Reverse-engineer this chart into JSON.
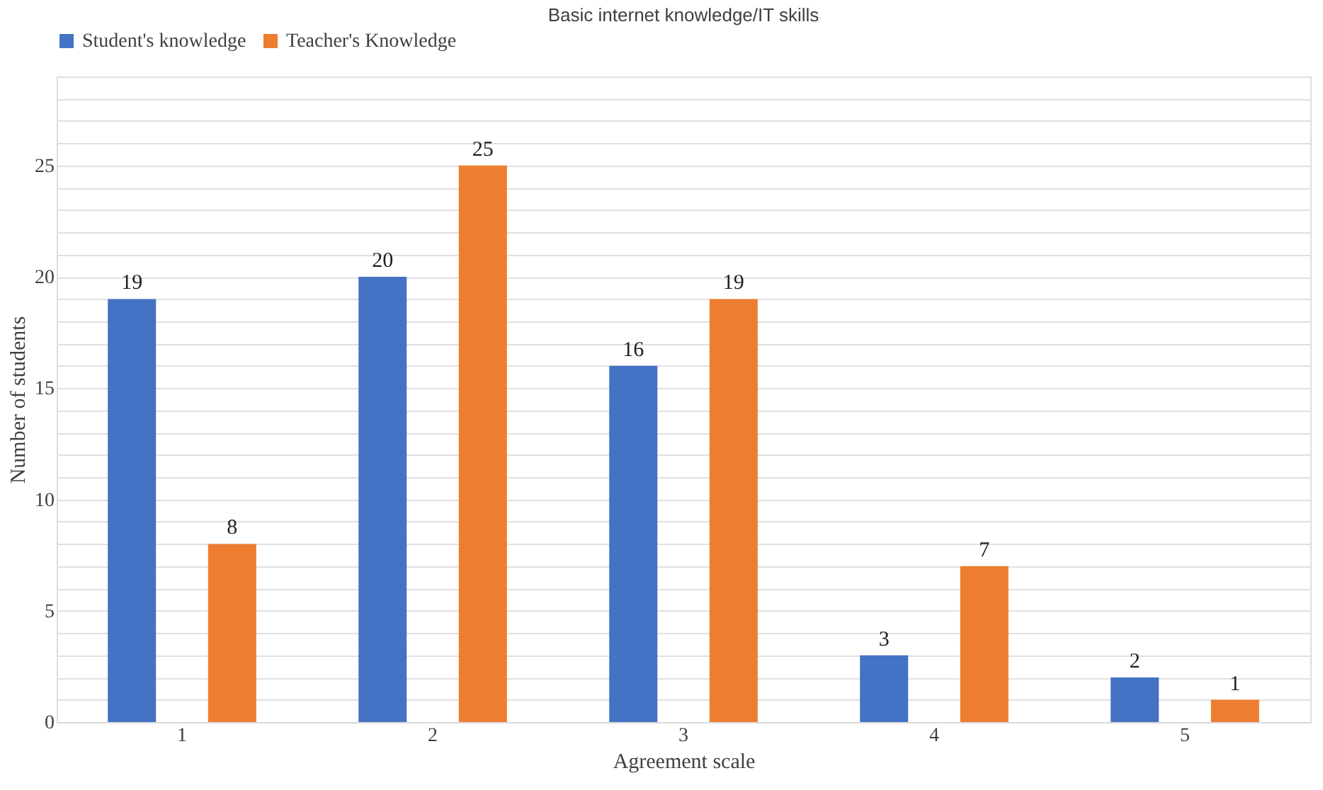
{
  "chart_data": {
    "type": "bar",
    "title": "Basic internet knowledge/IT skills",
    "xlabel": "Agreement scale",
    "ylabel": "Number of students",
    "categories": [
      "1",
      "2",
      "3",
      "4",
      "5"
    ],
    "series": [
      {
        "name": "Student's knowledge",
        "color": "#4472c4",
        "values": [
          19,
          20,
          16,
          3,
          2
        ]
      },
      {
        "name": "Teacher's Knowledge",
        "color": "#ed7d31",
        "values": [
          8,
          25,
          19,
          7,
          1
        ]
      }
    ],
    "ylim": [
      0,
      29
    ],
    "yticks": [
      0,
      {
        "value": 1,
        "label": null
      },
      {
        "value": 2,
        "label": null
      },
      {
        "value": 3,
        "label": null
      },
      {
        "value": 4,
        "label": null
      },
      5,
      {
        "value": 6,
        "label": null
      },
      {
        "value": 7,
        "label": null
      },
      {
        "value": 8,
        "label": null
      },
      {
        "value": 9,
        "label": null
      },
      10,
      {
        "value": 11,
        "label": null
      },
      {
        "value": 12,
        "label": null
      },
      {
        "value": 13,
        "label": null
      },
      {
        "value": 14,
        "label": null
      },
      15,
      {
        "value": 16,
        "label": null
      },
      {
        "value": 17,
        "label": null
      },
      {
        "value": 18,
        "label": null
      },
      {
        "value": 19,
        "label": null
      },
      20,
      {
        "value": 21,
        "label": null
      },
      {
        "value": 22,
        "label": null
      },
      {
        "value": 23,
        "label": null
      },
      {
        "value": 24,
        "label": null
      },
      25,
      {
        "value": 26,
        "label": null
      },
      {
        "value": 27,
        "label": null
      },
      {
        "value": 28,
        "label": null
      },
      {
        "value": 29,
        "label": null
      }
    ],
    "grid": "y",
    "legend": "top",
    "data_labels": true
  }
}
